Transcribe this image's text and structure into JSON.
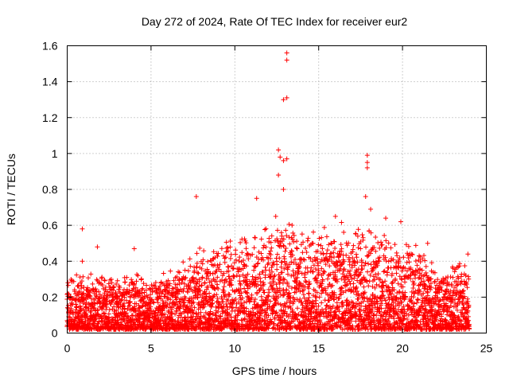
{
  "chart_data": {
    "type": "scatter",
    "title": "Day 272 of 2024, Rate Of TEC Index for receiver eur2",
    "xlabel": "GPS time / hours",
    "ylabel": "ROTI / TECUs",
    "xlim": [
      0,
      25
    ],
    "ylim": [
      0,
      1.6
    ],
    "x_ticks": [
      0,
      5,
      10,
      15,
      20,
      25
    ],
    "x_tick_labels": [
      "0",
      "5",
      "10",
      "15",
      "20",
      "25"
    ],
    "y_ticks": [
      0,
      0.2,
      0.4,
      0.6,
      0.8,
      1.0,
      1.2,
      1.4,
      1.6
    ],
    "y_tick_labels": [
      "0",
      "0.2",
      "0.4",
      "0.6",
      "0.8",
      "1",
      "1.2",
      "1.4",
      "1.6"
    ],
    "grid": true,
    "marker": "+",
    "color": "#ff0000",
    "series": [
      {
        "name": "ROTI",
        "notable_points": [
          {
            "x": 0.9,
            "y": 0.58
          },
          {
            "x": 0.9,
            "y": 0.4
          },
          {
            "x": 1.8,
            "y": 0.48
          },
          {
            "x": 4.0,
            "y": 0.47
          },
          {
            "x": 7.7,
            "y": 0.76
          },
          {
            "x": 11.3,
            "y": 0.75
          },
          {
            "x": 12.6,
            "y": 1.02
          },
          {
            "x": 12.7,
            "y": 0.98
          },
          {
            "x": 12.9,
            "y": 0.96
          },
          {
            "x": 13.1,
            "y": 0.97
          },
          {
            "x": 12.6,
            "y": 0.88
          },
          {
            "x": 12.9,
            "y": 1.3
          },
          {
            "x": 13.1,
            "y": 1.31
          },
          {
            "x": 13.1,
            "y": 1.52
          },
          {
            "x": 13.1,
            "y": 1.56
          },
          {
            "x": 12.9,
            "y": 0.8
          },
          {
            "x": 17.9,
            "y": 0.99
          },
          {
            "x": 17.9,
            "y": 0.95
          },
          {
            "x": 17.9,
            "y": 0.92
          },
          {
            "x": 17.8,
            "y": 0.76
          },
          {
            "x": 18.1,
            "y": 0.69
          },
          {
            "x": 16.0,
            "y": 0.65
          },
          {
            "x": 19.0,
            "y": 0.64
          },
          {
            "x": 19.9,
            "y": 0.62
          },
          {
            "x": 21.5,
            "y": 0.5
          },
          {
            "x": 23.9,
            "y": 0.44
          }
        ],
        "envelope": [
          {
            "x": 0,
            "y": 0.24
          },
          {
            "x": 1,
            "y": 0.25
          },
          {
            "x": 2,
            "y": 0.26
          },
          {
            "x": 3,
            "y": 0.24
          },
          {
            "x": 4,
            "y": 0.26
          },
          {
            "x": 5,
            "y": 0.24
          },
          {
            "x": 6,
            "y": 0.26
          },
          {
            "x": 7,
            "y": 0.3
          },
          {
            "x": 8,
            "y": 0.38
          },
          {
            "x": 9,
            "y": 0.4
          },
          {
            "x": 10,
            "y": 0.4
          },
          {
            "x": 11,
            "y": 0.45
          },
          {
            "x": 12,
            "y": 0.48
          },
          {
            "x": 13,
            "y": 0.5
          },
          {
            "x": 14,
            "y": 0.45
          },
          {
            "x": 15,
            "y": 0.46
          },
          {
            "x": 16,
            "y": 0.5
          },
          {
            "x": 17,
            "y": 0.48
          },
          {
            "x": 18,
            "y": 0.46
          },
          {
            "x": 19,
            "y": 0.44
          },
          {
            "x": 20,
            "y": 0.4
          },
          {
            "x": 21,
            "y": 0.38
          },
          {
            "x": 22,
            "y": 0.28
          },
          {
            "x": 23,
            "y": 0.3
          },
          {
            "x": 24,
            "y": 0.32
          }
        ]
      }
    ]
  }
}
